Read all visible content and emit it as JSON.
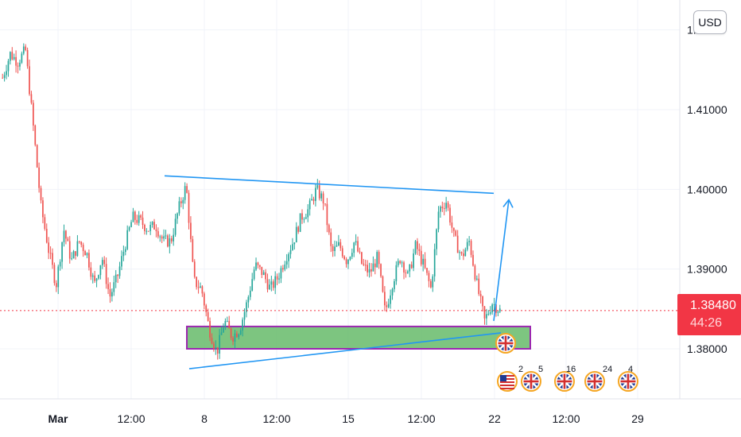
{
  "chart_data": {
    "type": "candlestick",
    "title": "",
    "currency": "USD",
    "last_price": "1.38480",
    "countdown": "44:26",
    "y_ticks": [
      "1.41000",
      "1.40000",
      "1.39000",
      "1.38000"
    ],
    "y_top_partial": "1.",
    "x_ticks": [
      "Mar",
      "12:00",
      "8",
      "12:00",
      "15",
      "12:00",
      "22",
      "12:00",
      "29"
    ],
    "ylim": [
      1.3755,
      1.4215
    ],
    "series": [
      {
        "name": "",
        "values": [
          1.414,
          1.417,
          1.416,
          1.4175,
          1.408,
          1.398,
          1.3925,
          1.388,
          1.395,
          1.391,
          1.3935,
          1.392,
          1.388,
          1.3915,
          1.3865,
          1.389,
          1.393,
          1.3965,
          1.396,
          1.395,
          1.3955,
          1.3935,
          1.3935,
          1.3975,
          1.4005,
          1.3885,
          1.3875,
          1.3825,
          1.3795,
          1.3835,
          1.3815,
          1.3825,
          1.386,
          1.3905,
          1.3895,
          1.3875,
          1.389,
          1.3915,
          1.3935,
          1.3965,
          1.3975,
          1.4,
          1.3985,
          1.392,
          1.393,
          1.391,
          1.3935,
          1.3905,
          1.3895,
          1.3915,
          1.3845,
          1.3885,
          1.3915,
          1.389,
          1.393,
          1.3905,
          1.3875,
          1.3975,
          1.3985,
          1.394,
          1.3915,
          1.3935,
          1.388,
          1.3835,
          1.3858,
          1.3848
        ]
      }
    ],
    "annotations": {
      "support_zone": {
        "price_low": 1.38,
        "price_high": 1.3828
      },
      "upper_trendline": [
        [
          0,
          1.4017
        ],
        [
          1,
          1.3995
        ]
      ],
      "lower_trendline": [
        [
          0,
          1.3775
        ],
        [
          1,
          1.382
        ]
      ],
      "projection_arrow": [
        [
          0,
          1.3835
        ],
        [
          1,
          1.3987
        ]
      ]
    },
    "event_flags": [
      "2",
      "5",
      "16",
      "24",
      "4"
    ]
  },
  "colors": {
    "up": "#26a69a",
    "down": "#ef5350",
    "trendline": "#2196f3",
    "zone_fill": "#66bb6a",
    "zone_border": "#9c27b0",
    "price_line": "#f23645",
    "grid": "#f0f3fa"
  },
  "icons": [
    "uk-flag-icon",
    "us-flag-icon"
  ]
}
